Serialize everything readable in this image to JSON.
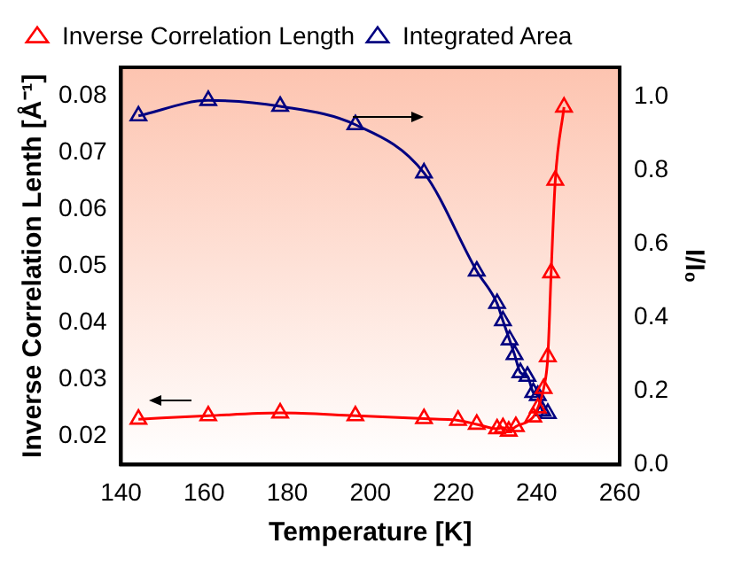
{
  "chart_data": {
    "type": "line",
    "xlabel": "Temperature [K]",
    "ylabel": "Inverse Correlation Lenth [Å⁻¹]",
    "y2label": "I/I₀",
    "xlim": [
      140,
      260
    ],
    "xticks": [
      140,
      160,
      180,
      200,
      220,
      240,
      260
    ],
    "ylim": [
      0.015,
      0.085
    ],
    "yticks": [
      0.02,
      0.03,
      0.04,
      0.05,
      0.06,
      0.07,
      0.08
    ],
    "y2lim": [
      0,
      1.08
    ],
    "y2ticks": [
      {
        "value": 0,
        "label": "0.0"
      },
      0.2,
      0.4,
      0.6,
      0.8,
      {
        "value": 1,
        "label": "1.0"
      }
    ],
    "legend": "top",
    "marker": "triangle",
    "grid": false,
    "series": [
      {
        "name": "Inverse Correlation Length",
        "color": "#ff0000",
        "x": [
          144.2,
          161.0,
          178.3,
          196.4,
          212.9,
          221.1,
          225.6,
          230.5,
          231.9,
          233.3,
          235.0,
          239.2,
          240.3,
          241.7,
          242.7,
          243.5,
          244.5,
          246.6
        ],
        "values": [
          0.023,
          0.0236,
          0.0241,
          0.0236,
          0.0231,
          0.0228,
          0.0221,
          0.0213,
          0.0215,
          0.0209,
          0.0217,
          0.0234,
          0.025,
          0.0284,
          0.034,
          0.0488,
          0.0651,
          0.078
        ]
      },
      {
        "name": "Integrated Area",
        "color": "#000080",
        "axis": "y2",
        "x": [
          144.2,
          161.0,
          178.3,
          196.4,
          212.9,
          225.6,
          230.5,
          231.9,
          233.5,
          234.7,
          236.1,
          237.8,
          239.2,
          240.3,
          241.4,
          242.7
        ],
        "values": [
          0.948,
          0.99,
          0.974,
          0.924,
          0.793,
          0.526,
          0.438,
          0.391,
          0.339,
          0.299,
          0.25,
          0.24,
          0.196,
          0.188,
          0.146,
          0.139
        ]
      }
    ]
  }
}
